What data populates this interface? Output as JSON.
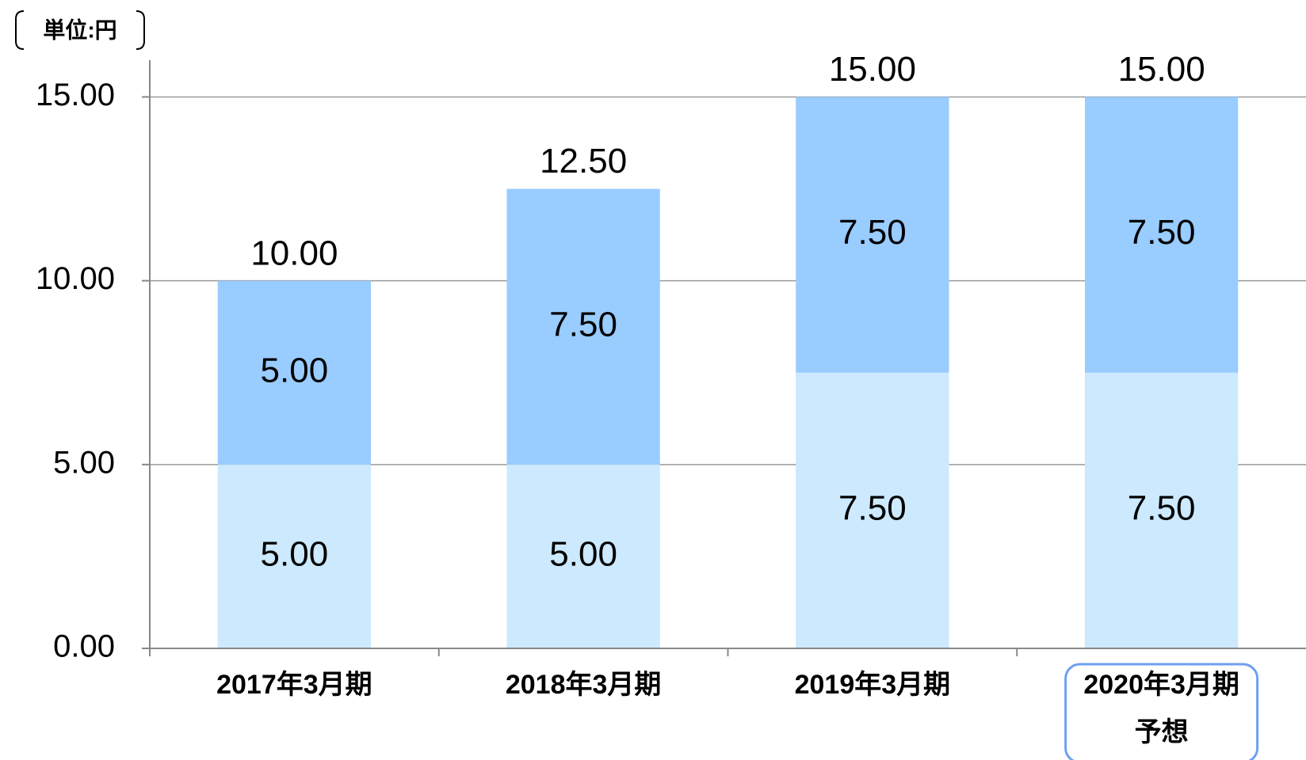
{
  "chart_data": {
    "type": "stacked_bar",
    "unit_label": "単位:円",
    "categories": [
      "2017年3月期",
      "2018年3月期",
      "2019年3月期",
      "2020年3月期"
    ],
    "forecast_note": "予想",
    "series": [
      {
        "color": "#cce9fd",
        "values": [
          5,
          5,
          7.5,
          7.5
        ],
        "value_labels": [
          "5.00",
          "5.00",
          "7.50",
          "7.50"
        ]
      },
      {
        "color": "#99ccff",
        "values": [
          5,
          7.5,
          7.5,
          7.5
        ],
        "value_labels": [
          "5.00",
          "7.50",
          "7.50",
          "7.50"
        ]
      }
    ],
    "totals": [
      10,
      12.5,
      15,
      15
    ],
    "total_labels": [
      "10.00",
      "12.50",
      "15.00",
      "15.00"
    ],
    "ylim": [
      0,
      16
    ],
    "yticks": [
      {
        "value": 0,
        "label": "0.00"
      },
      {
        "value": 5,
        "label": "5.00"
      },
      {
        "value": 10,
        "label": "10.00"
      },
      {
        "value": 15,
        "label": "15.00"
      }
    ],
    "grid": true
  }
}
